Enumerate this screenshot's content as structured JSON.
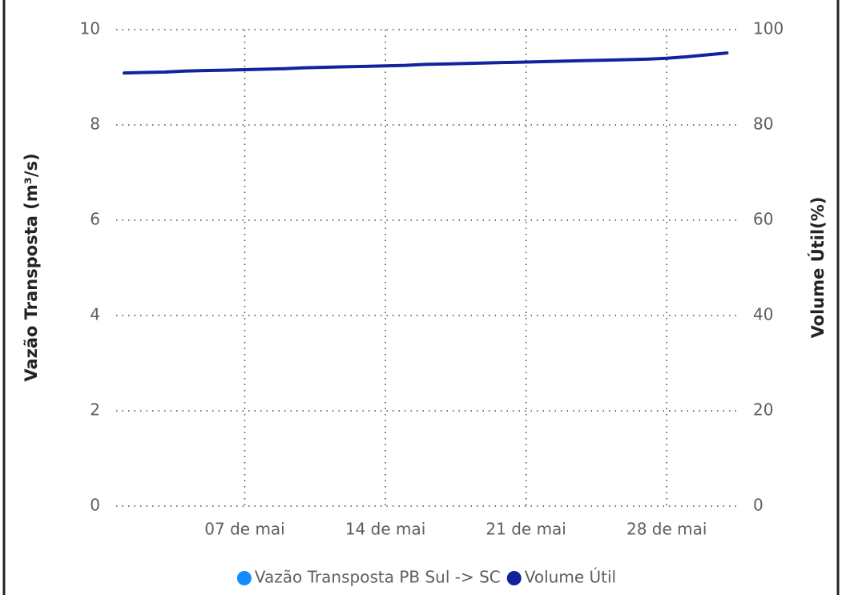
{
  "chart_data": {
    "type": "line",
    "x": [
      1,
      2,
      3,
      4,
      5,
      6,
      7,
      8,
      9,
      10,
      11,
      12,
      13,
      14,
      15,
      16,
      17,
      18,
      19,
      20,
      21,
      22,
      23,
      24,
      25,
      26,
      27,
      28,
      29,
      30,
      31
    ],
    "xlim": [
      0.6,
      31.5
    ],
    "xticks": [
      {
        "value": 7,
        "label": "07 de mai"
      },
      {
        "value": 14,
        "label": "14 de mai"
      },
      {
        "value": 21,
        "label": "21 de mai"
      },
      {
        "value": 28,
        "label": "28 de mai"
      }
    ],
    "ylabel": "Vazão Transposta (m³/s)",
    "ylim": [
      0,
      10
    ],
    "yticks": [
      0,
      2,
      4,
      6,
      8,
      10
    ],
    "y2label": "Volume Útil(%)",
    "y2lim": [
      0,
      100
    ],
    "y2ticks": [
      0,
      20,
      40,
      60,
      80,
      100
    ],
    "grid": true,
    "series": [
      {
        "name": "Vazão Transposta PB Sul -> SC",
        "color": "#118dff",
        "values": [
          null,
          null,
          null,
          null,
          null,
          null,
          null,
          null,
          null,
          null,
          null,
          null,
          null,
          null,
          null,
          null,
          null,
          null,
          null,
          null,
          null,
          null,
          null,
          null,
          null,
          null,
          null,
          null,
          null,
          null,
          null
        ]
      },
      {
        "name": "Volume Útil",
        "color": "#12239e",
        "axis": "y2",
        "values": [
          90.9,
          91.0,
          91.1,
          91.3,
          91.4,
          91.5,
          91.6,
          91.7,
          91.8,
          92.0,
          92.1,
          92.2,
          92.3,
          92.4,
          92.5,
          92.7,
          92.8,
          92.9,
          93.0,
          93.1,
          93.2,
          93.3,
          93.4,
          93.5,
          93.6,
          93.7,
          93.8,
          94.0,
          94.3,
          94.7,
          95.1
        ]
      }
    ],
    "legend": "bottom"
  }
}
